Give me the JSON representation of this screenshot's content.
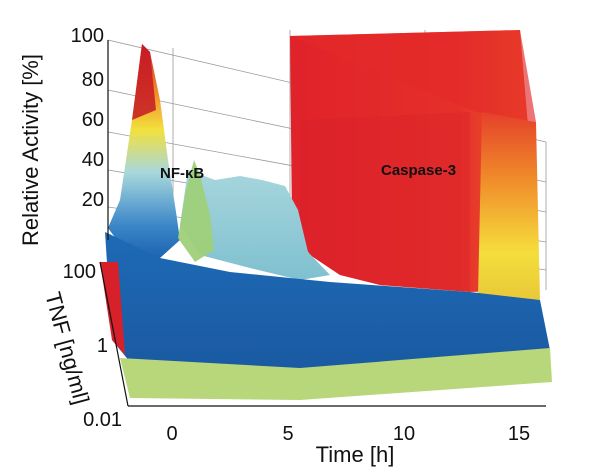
{
  "chart_data": {
    "type": "surface3d",
    "title": "",
    "xlabel": "Time [h]",
    "ylabel": "TNF [ng/ml]",
    "zlabel": "Relative Activity [%]",
    "xlim": [
      -1.5,
      16
    ],
    "zlim": [
      0,
      100
    ],
    "x_ticks": [
      "0",
      "5",
      "10",
      "15"
    ],
    "y_ticks": [
      "0.01",
      "1",
      "100"
    ],
    "z_ticks": [
      "20",
      "40",
      "60",
      "80",
      "100"
    ],
    "grid": true,
    "annotations": [
      "NF-κB",
      "Caspase-3"
    ],
    "colors": {
      "high": "#e0222a",
      "upper": "#f07a2a",
      "mid": "#f5e33a",
      "low_mid": "#9ed0d8",
      "low": "#1e63b0",
      "floor": "#b8d67a"
    },
    "series": [
      {
        "name": "NF-κB",
        "x": [
          -1,
          0,
          0.5,
          1,
          1.5,
          2,
          3,
          4,
          5,
          6
        ],
        "y": [
          10,
          95,
          40,
          18,
          55,
          25,
          30,
          35,
          30,
          12
        ]
      },
      {
        "name": "Caspase-3",
        "x": [
          5,
          5.5,
          6,
          7,
          10,
          13,
          16
        ],
        "y": [
          10,
          95,
          100,
          100,
          100,
          100,
          100
        ]
      }
    ]
  }
}
